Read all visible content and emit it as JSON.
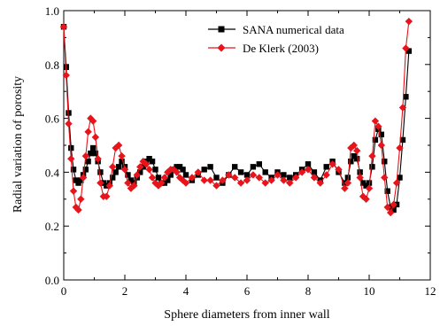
{
  "chart_data": {
    "type": "line",
    "xlabel": "Sphere diameters from inner wall",
    "ylabel": "Radial variation of porosity",
    "xlim": [
      0,
      12
    ],
    "ylim": [
      0.0,
      1.0
    ],
    "x_ticks": [
      0,
      2,
      4,
      6,
      8,
      10,
      12
    ],
    "y_ticks": [
      0.0,
      0.2,
      0.4,
      0.6,
      0.8,
      1.0
    ],
    "x_tick_labels": [
      "0",
      "2",
      "4",
      "6",
      "8",
      "10",
      "12"
    ],
    "y_tick_labels": [
      "0.0",
      "0.2",
      "0.4",
      "0.6",
      "0.8",
      "1.0"
    ],
    "legend_position": "top-right",
    "grid": false,
    "series": [
      {
        "name": "SANA numerical data",
        "color": "#000000",
        "marker": "square",
        "x": [
          0.0,
          0.08,
          0.16,
          0.24,
          0.32,
          0.4,
          0.48,
          0.56,
          0.64,
          0.72,
          0.8,
          0.88,
          0.96,
          1.04,
          1.12,
          1.2,
          1.3,
          1.4,
          1.5,
          1.6,
          1.7,
          1.8,
          1.9,
          2.0,
          2.1,
          2.2,
          2.3,
          2.4,
          2.5,
          2.6,
          2.7,
          2.8,
          2.9,
          3.0,
          3.1,
          3.2,
          3.3,
          3.4,
          3.5,
          3.6,
          3.7,
          3.8,
          3.9,
          4.0,
          4.2,
          4.4,
          4.6,
          4.8,
          5.0,
          5.2,
          5.4,
          5.6,
          5.8,
          6.0,
          6.2,
          6.4,
          6.6,
          6.8,
          7.0,
          7.2,
          7.4,
          7.6,
          7.8,
          8.0,
          8.2,
          8.4,
          8.6,
          8.8,
          9.0,
          9.2,
          9.3,
          9.4,
          9.5,
          9.6,
          9.7,
          9.8,
          9.9,
          10.0,
          10.1,
          10.2,
          10.3,
          10.4,
          10.5,
          10.6,
          10.7,
          10.8,
          10.9,
          11.0,
          11.1,
          11.2,
          11.3
        ],
        "y": [
          0.94,
          0.79,
          0.62,
          0.49,
          0.41,
          0.37,
          0.36,
          0.37,
          0.39,
          0.41,
          0.44,
          0.47,
          0.49,
          0.47,
          0.44,
          0.4,
          0.36,
          0.35,
          0.36,
          0.38,
          0.4,
          0.42,
          0.44,
          0.42,
          0.39,
          0.37,
          0.36,
          0.38,
          0.4,
          0.42,
          0.44,
          0.45,
          0.44,
          0.41,
          0.38,
          0.36,
          0.36,
          0.37,
          0.39,
          0.41,
          0.42,
          0.42,
          0.41,
          0.39,
          0.37,
          0.39,
          0.41,
          0.42,
          0.38,
          0.36,
          0.39,
          0.42,
          0.4,
          0.39,
          0.42,
          0.43,
          0.4,
          0.38,
          0.4,
          0.39,
          0.38,
          0.39,
          0.41,
          0.43,
          0.4,
          0.37,
          0.42,
          0.44,
          0.4,
          0.36,
          0.38,
          0.44,
          0.46,
          0.45,
          0.4,
          0.36,
          0.35,
          0.36,
          0.42,
          0.52,
          0.56,
          0.54,
          0.44,
          0.33,
          0.27,
          0.26,
          0.28,
          0.38,
          0.52,
          0.68,
          0.85
        ]
      },
      {
        "name": "De Klerk (2003)",
        "color": "#e8141b",
        "marker": "diamond",
        "x": [
          0.0,
          0.08,
          0.16,
          0.24,
          0.32,
          0.4,
          0.48,
          0.56,
          0.64,
          0.72,
          0.8,
          0.88,
          0.96,
          1.04,
          1.12,
          1.2,
          1.3,
          1.4,
          1.5,
          1.6,
          1.7,
          1.8,
          1.9,
          2.0,
          2.1,
          2.2,
          2.3,
          2.4,
          2.5,
          2.6,
          2.7,
          2.8,
          2.9,
          3.0,
          3.1,
          3.2,
          3.3,
          3.4,
          3.5,
          3.6,
          3.7,
          3.8,
          3.9,
          4.0,
          4.2,
          4.4,
          4.6,
          4.8,
          5.0,
          5.2,
          5.4,
          5.6,
          5.8,
          6.0,
          6.2,
          6.4,
          6.6,
          6.8,
          7.0,
          7.2,
          7.4,
          7.6,
          7.8,
          8.0,
          8.2,
          8.4,
          8.6,
          8.8,
          9.0,
          9.2,
          9.3,
          9.4,
          9.5,
          9.6,
          9.7,
          9.8,
          9.9,
          10.0,
          10.1,
          10.2,
          10.3,
          10.4,
          10.5,
          10.6,
          10.7,
          10.8,
          10.9,
          11.0,
          11.1,
          11.2,
          11.3
        ],
        "y": [
          0.94,
          0.76,
          0.58,
          0.45,
          0.33,
          0.27,
          0.26,
          0.3,
          0.38,
          0.46,
          0.55,
          0.6,
          0.59,
          0.53,
          0.45,
          0.36,
          0.31,
          0.31,
          0.35,
          0.42,
          0.49,
          0.5,
          0.46,
          0.41,
          0.36,
          0.34,
          0.35,
          0.39,
          0.42,
          0.44,
          0.43,
          0.41,
          0.38,
          0.36,
          0.35,
          0.36,
          0.38,
          0.4,
          0.41,
          0.41,
          0.4,
          0.38,
          0.37,
          0.36,
          0.38,
          0.4,
          0.37,
          0.37,
          0.35,
          0.37,
          0.39,
          0.38,
          0.36,
          0.37,
          0.39,
          0.38,
          0.36,
          0.37,
          0.39,
          0.37,
          0.36,
          0.38,
          0.4,
          0.41,
          0.38,
          0.36,
          0.39,
          0.43,
          0.41,
          0.34,
          0.36,
          0.49,
          0.5,
          0.48,
          0.38,
          0.31,
          0.3,
          0.34,
          0.46,
          0.59,
          0.57,
          0.5,
          0.38,
          0.27,
          0.25,
          0.28,
          0.36,
          0.49,
          0.64,
          0.86,
          0.96
        ]
      }
    ]
  }
}
